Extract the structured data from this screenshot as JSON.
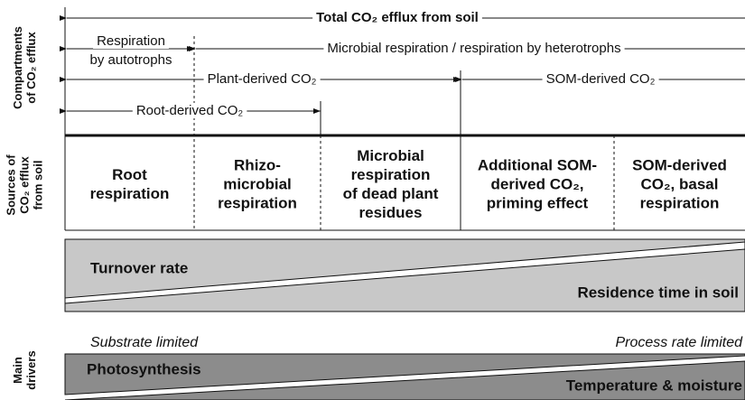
{
  "side_labels": {
    "compartments": [
      "Compartments",
      "of CO₂ efflux"
    ],
    "sources": [
      "Sources of",
      "CO₂ efflux",
      "from soil"
    ],
    "drivers": [
      "Main",
      "drivers"
    ]
  },
  "compartments": {
    "total": "Total CO₂ efflux from soil",
    "autotrophs": [
      "Respiration",
      "by autotrophs"
    ],
    "heterotrophs": "Microbial respiration / respiration by heterotrophs",
    "plant_derived": "Plant-derived CO₂",
    "som_derived": "SOM-derived CO₂",
    "root_derived": "Root-derived CO₂"
  },
  "sources": [
    [
      "Root",
      "respiration"
    ],
    [
      "Rhizo-",
      "microbial",
      "respiration"
    ],
    [
      "Microbial",
      "respiration",
      "of dead plant",
      "residues"
    ],
    [
      "Additional SOM-",
      "derived CO₂,",
      "priming effect"
    ],
    [
      "SOM-derived",
      "CO₂, basal",
      "respiration"
    ]
  ],
  "turnover": {
    "left": "Turnover rate",
    "right": "Residence time in soil"
  },
  "drivers": {
    "left_note": "Substrate limited",
    "right_note": "Process rate limited",
    "left": "Photosynthesis",
    "right": "Temperature & moisture"
  }
}
